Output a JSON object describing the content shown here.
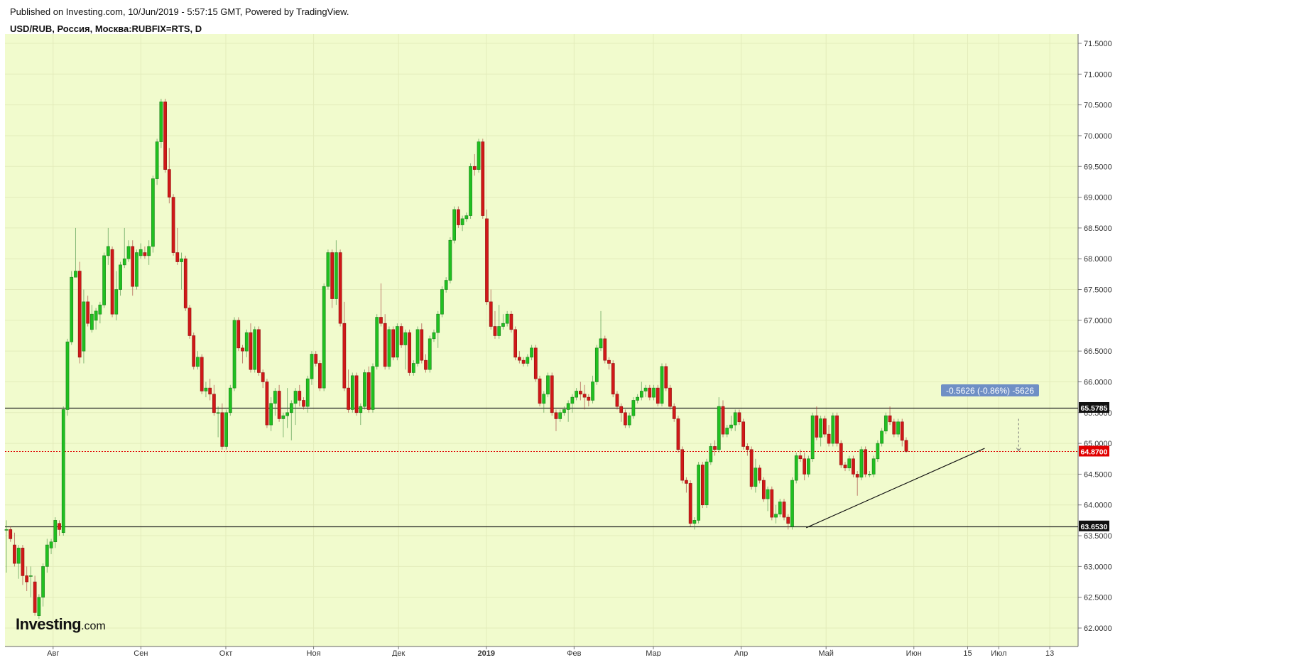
{
  "header": {
    "published": "Published on Investing.com, 10/Jun/2019 - 5:57:15 GMT, Powered by TradingView.",
    "symbol": "USD/RUB, Россия, Москва:RUBFIX=RTS, D"
  },
  "logo": {
    "main": "Investing",
    "suffix": ".com"
  },
  "colors": {
    "plot_bg": "#f1fbcd",
    "up": "#20c020",
    "down": "#d01818",
    "grid": "#e3ecbb",
    "level_line": "#222222",
    "current_line": "#e00000",
    "measure_label_bg": "#6f8fc5"
  },
  "chart_data": {
    "type": "candlestick",
    "title": "USD/RUB, Россия, Москва:RUBFIX=RTS, D",
    "ylim": [
      61.7,
      71.65
    ],
    "y_ticks": [
      "62.0000",
      "62.5000",
      "63.0000",
      "63.5000",
      "64.0000",
      "64.5000",
      "65.0000",
      "65.5000",
      "66.0000",
      "66.5000",
      "67.0000",
      "67.5000",
      "68.0000",
      "68.5000",
      "69.0000",
      "69.5000",
      "70.0000",
      "70.5000",
      "71.0000",
      "71.5000"
    ],
    "x_labels": [
      {
        "label": "Авг",
        "day": 22
      },
      {
        "label": "Сен",
        "day": 53
      },
      {
        "label": "Окт",
        "day": 83
      },
      {
        "label": "Ноя",
        "day": 114
      },
      {
        "label": "Дек",
        "day": 144
      },
      {
        "label": "2019",
        "day": 175,
        "bold": true
      },
      {
        "label": "Фев",
        "day": 206
      },
      {
        "label": "Мар",
        "day": 234
      },
      {
        "label": "Апр",
        "day": 265
      },
      {
        "label": "Май",
        "day": 295
      },
      {
        "label": "Июн",
        "day": 326
      },
      {
        "label": "15",
        "day": 345
      },
      {
        "label": "Июл",
        "day": 356
      },
      {
        "label": "13",
        "day": 374
      }
    ],
    "x_range_days": [
      5,
      384
    ],
    "horizontal_levels": [
      {
        "value": 65.5785,
        "label": "65.5785"
      },
      {
        "value": 63.653,
        "label": "63.6530"
      }
    ],
    "current_price": {
      "value": 64.87,
      "label": "64.8700"
    },
    "trendline": {
      "from": {
        "day": 288,
        "value": 63.63
      },
      "to": {
        "day": 351,
        "value": 64.92
      }
    },
    "measure": {
      "day": 363,
      "from": 65.4,
      "to": 64.88,
      "label": "-0.5626 (-0.86%) -5626"
    },
    "series": [
      [
        63.6,
        63.75,
        62.9,
        63.6
      ],
      [
        63.6,
        63.65,
        63.4,
        63.45
      ],
      [
        63.35,
        63.55,
        63.0,
        63.05
      ],
      [
        63.05,
        63.35,
        62.8,
        63.3
      ],
      [
        63.3,
        63.35,
        62.7,
        62.85
      ],
      [
        62.85,
        63.0,
        62.6,
        62.75
      ],
      [
        62.85,
        63.0,
        62.5,
        62.85
      ],
      [
        62.75,
        62.85,
        62.2,
        62.25
      ],
      [
        62.2,
        62.55,
        62.15,
        62.5
      ],
      [
        62.5,
        63.05,
        62.35,
        63.0
      ],
      [
        63.0,
        63.45,
        62.9,
        63.35
      ],
      [
        63.3,
        63.45,
        63.2,
        63.4
      ],
      [
        63.4,
        63.8,
        63.3,
        63.75
      ],
      [
        63.7,
        63.75,
        63.5,
        63.6
      ],
      [
        63.55,
        65.6,
        63.5,
        65.55
      ],
      [
        65.55,
        66.7,
        65.45,
        66.65
      ],
      [
        66.65,
        67.8,
        66.6,
        67.7
      ],
      [
        67.7,
        68.5,
        67.75,
        67.8
      ],
      [
        67.8,
        67.95,
        66.3,
        66.4
      ],
      [
        66.5,
        67.5,
        66.3,
        67.3
      ],
      [
        67.3,
        67.4,
        66.9,
        66.95
      ],
      [
        66.85,
        67.25,
        66.8,
        67.1
      ],
      [
        67.0,
        67.2,
        66.85,
        67.15
      ],
      [
        67.1,
        67.3,
        66.95,
        67.25
      ],
      [
        67.25,
        68.1,
        67.2,
        68.05
      ],
      [
        68.05,
        68.5,
        67.9,
        68.2
      ],
      [
        68.15,
        68.2,
        67.05,
        67.1
      ],
      [
        67.1,
        67.8,
        67.0,
        67.5
      ],
      [
        67.5,
        67.95,
        67.4,
        67.9
      ],
      [
        67.9,
        68.5,
        67.85,
        68.0
      ],
      [
        68.0,
        68.3,
        67.95,
        68.2
      ],
      [
        68.2,
        68.3,
        67.4,
        67.55
      ],
      [
        67.55,
        68.15,
        67.5,
        68.1
      ],
      [
        68.05,
        68.25,
        68.0,
        68.15
      ],
      [
        68.1,
        68.2,
        68.0,
        68.05
      ],
      [
        68.05,
        68.3,
        67.9,
        68.2
      ],
      [
        68.2,
        69.35,
        68.1,
        69.3
      ],
      [
        69.3,
        69.95,
        69.2,
        69.9
      ],
      [
        69.9,
        70.6,
        69.8,
        70.55
      ],
      [
        70.55,
        70.6,
        69.4,
        69.45
      ],
      [
        69.45,
        69.8,
        68.9,
        69.0
      ],
      [
        69.0,
        69.05,
        68.05,
        68.1
      ],
      [
        68.1,
        68.5,
        67.9,
        67.95
      ],
      [
        67.95,
        68.1,
        67.5,
        68.0
      ],
      [
        68.0,
        68.05,
        67.15,
        67.2
      ],
      [
        67.2,
        67.25,
        66.7,
        66.75
      ],
      [
        66.75,
        66.8,
        66.2,
        66.25
      ],
      [
        66.25,
        66.5,
        66.2,
        66.4
      ],
      [
        66.4,
        66.45,
        65.8,
        65.85
      ],
      [
        65.85,
        66.0,
        65.75,
        65.9
      ],
      [
        65.9,
        66.05,
        65.7,
        65.8
      ],
      [
        65.8,
        65.95,
        65.45,
        65.5
      ],
      [
        65.5,
        65.6,
        65.1,
        65.5
      ],
      [
        65.5,
        65.65,
        64.9,
        64.95
      ],
      [
        64.95,
        65.55,
        64.9,
        65.5
      ],
      [
        65.5,
        65.95,
        65.45,
        65.9
      ],
      [
        65.9,
        67.05,
        65.85,
        67.0
      ],
      [
        67.0,
        67.05,
        66.5,
        66.55
      ],
      [
        66.55,
        66.6,
        66.3,
        66.5
      ],
      [
        66.5,
        66.85,
        66.4,
        66.8
      ],
      [
        66.8,
        66.95,
        66.15,
        66.2
      ],
      [
        66.2,
        66.9,
        66.15,
        66.85
      ],
      [
        66.85,
        66.9,
        66.1,
        66.15
      ],
      [
        66.15,
        66.2,
        65.9,
        66.0
      ],
      [
        66.0,
        66.05,
        65.25,
        65.3
      ],
      [
        65.3,
        65.75,
        65.2,
        65.65
      ],
      [
        65.65,
        65.9,
        65.45,
        65.85
      ],
      [
        65.85,
        65.95,
        65.35,
        65.4
      ],
      [
        65.4,
        65.5,
        65.1,
        65.45
      ],
      [
        65.45,
        65.9,
        65.25,
        65.5
      ],
      [
        65.5,
        65.7,
        65.05,
        65.65
      ],
      [
        65.65,
        65.9,
        65.3,
        65.85
      ],
      [
        65.85,
        65.95,
        65.6,
        65.7
      ],
      [
        65.7,
        65.75,
        65.55,
        65.6
      ],
      [
        65.6,
        66.1,
        65.5,
        66.05
      ],
      [
        66.05,
        66.5,
        65.95,
        66.45
      ],
      [
        66.45,
        66.5,
        66.25,
        66.3
      ],
      [
        66.3,
        66.35,
        65.85,
        65.9
      ],
      [
        65.9,
        67.6,
        65.85,
        67.55
      ],
      [
        67.55,
        68.15,
        67.5,
        68.1
      ],
      [
        68.1,
        68.15,
        67.2,
        67.35
      ],
      [
        67.35,
        68.3,
        67.25,
        68.1
      ],
      [
        68.1,
        68.15,
        66.9,
        66.95
      ],
      [
        66.95,
        67.3,
        65.85,
        65.9
      ],
      [
        65.9,
        66.2,
        65.5,
        65.55
      ],
      [
        65.55,
        66.15,
        65.5,
        66.1
      ],
      [
        66.1,
        66.15,
        65.45,
        65.5
      ],
      [
        65.5,
        65.65,
        65.3,
        65.6
      ],
      [
        65.6,
        66.2,
        65.55,
        66.15
      ],
      [
        66.15,
        66.25,
        65.5,
        65.55
      ],
      [
        65.55,
        66.3,
        65.5,
        66.25
      ],
      [
        66.25,
        67.1,
        66.2,
        67.05
      ],
      [
        67.05,
        67.6,
        66.9,
        66.95
      ],
      [
        66.95,
        67.1,
        66.2,
        66.25
      ],
      [
        66.25,
        66.9,
        66.2,
        66.85
      ],
      [
        66.85,
        66.9,
        66.35,
        66.4
      ],
      [
        66.4,
        66.95,
        66.35,
        66.9
      ],
      [
        66.9,
        66.95,
        66.55,
        66.6
      ],
      [
        66.6,
        66.85,
        66.2,
        66.8
      ],
      [
        66.8,
        66.85,
        66.1,
        66.15
      ],
      [
        66.15,
        66.35,
        66.1,
        66.3
      ],
      [
        66.3,
        66.9,
        66.25,
        66.85
      ],
      [
        66.85,
        66.95,
        66.3,
        66.35
      ],
      [
        66.35,
        66.45,
        66.15,
        66.2
      ],
      [
        66.2,
        66.75,
        66.15,
        66.7
      ],
      [
        66.7,
        66.85,
        66.65,
        66.8
      ],
      [
        66.8,
        67.15,
        66.55,
        67.1
      ],
      [
        67.1,
        67.55,
        67.05,
        67.5
      ],
      [
        67.5,
        67.7,
        67.45,
        67.65
      ],
      [
        67.65,
        68.35,
        67.6,
        68.3
      ],
      [
        68.3,
        68.85,
        68.25,
        68.8
      ],
      [
        68.8,
        68.85,
        68.5,
        68.55
      ],
      [
        68.55,
        68.7,
        68.45,
        68.65
      ],
      [
        68.65,
        68.75,
        68.6,
        68.7
      ],
      [
        68.7,
        69.55,
        68.65,
        69.5
      ],
      [
        69.5,
        69.7,
        69.35,
        69.45
      ],
      [
        69.45,
        69.95,
        69.4,
        69.9
      ],
      [
        69.9,
        69.95,
        68.65,
        68.7
      ],
      [
        68.65,
        68.8,
        67.25,
        67.3
      ],
      [
        67.3,
        67.5,
        66.85,
        66.9
      ],
      [
        66.9,
        67.15,
        66.7,
        66.75
      ],
      [
        66.75,
        67.25,
        66.7,
        66.9
      ],
      [
        66.9,
        67.1,
        66.85,
        66.95
      ],
      [
        66.95,
        67.15,
        66.9,
        67.1
      ],
      [
        67.1,
        67.15,
        66.8,
        66.85
      ],
      [
        66.85,
        66.9,
        66.35,
        66.4
      ],
      [
        66.4,
        66.5,
        66.3,
        66.35
      ],
      [
        66.35,
        66.4,
        66.25,
        66.3
      ],
      [
        66.3,
        66.45,
        66.25,
        66.4
      ],
      [
        66.4,
        66.6,
        66.35,
        66.55
      ],
      [
        66.55,
        66.6,
        66.0,
        66.05
      ],
      [
        66.05,
        66.1,
        65.6,
        65.65
      ],
      [
        65.65,
        65.85,
        65.5,
        65.8
      ],
      [
        65.8,
        66.15,
        65.75,
        66.1
      ],
      [
        66.1,
        66.15,
        65.45,
        65.5
      ],
      [
        65.5,
        65.55,
        65.2,
        65.4
      ],
      [
        65.4,
        65.55,
        65.35,
        65.5
      ],
      [
        65.5,
        65.6,
        65.45,
        65.55
      ],
      [
        65.55,
        65.7,
        65.35,
        65.65
      ],
      [
        65.65,
        65.8,
        65.5,
        65.75
      ],
      [
        65.75,
        65.9,
        65.7,
        65.85
      ],
      [
        65.85,
        66.0,
        65.7,
        65.8
      ],
      [
        65.8,
        65.95,
        65.55,
        65.75
      ],
      [
        65.75,
        65.8,
        65.6,
        65.7
      ],
      [
        65.7,
        66.1,
        65.65,
        66.0
      ],
      [
        66.0,
        66.6,
        65.95,
        66.55
      ],
      [
        66.55,
        67.15,
        66.5,
        66.7
      ],
      [
        66.7,
        66.75,
        66.3,
        66.35
      ],
      [
        66.35,
        66.4,
        66.2,
        66.3
      ],
      [
        66.3,
        66.35,
        65.75,
        65.8
      ],
      [
        65.8,
        65.85,
        65.55,
        65.6
      ],
      [
        65.6,
        65.65,
        65.35,
        65.5
      ],
      [
        65.5,
        65.55,
        65.25,
        65.3
      ],
      [
        65.3,
        65.5,
        65.25,
        65.45
      ],
      [
        65.45,
        65.75,
        65.4,
        65.7
      ],
      [
        65.7,
        65.8,
        65.65,
        65.75
      ],
      [
        65.75,
        66.0,
        65.7,
        65.85
      ],
      [
        65.85,
        65.95,
        65.75,
        65.9
      ],
      [
        65.9,
        65.95,
        65.7,
        65.75
      ],
      [
        65.75,
        65.95,
        65.7,
        65.9
      ],
      [
        65.9,
        65.95,
        65.6,
        65.65
      ],
      [
        65.65,
        66.3,
        65.6,
        66.25
      ],
      [
        66.25,
        66.3,
        65.85,
        65.9
      ],
      [
        65.9,
        65.95,
        65.55,
        65.6
      ],
      [
        65.6,
        65.65,
        65.35,
        65.4
      ],
      [
        65.4,
        65.45,
        64.85,
        64.9
      ],
      [
        64.9,
        64.95,
        64.35,
        64.4
      ],
      [
        64.4,
        64.45,
        64.2,
        64.35
      ],
      [
        64.35,
        64.4,
        63.65,
        63.7
      ],
      [
        63.7,
        63.8,
        63.6,
        63.75
      ],
      [
        63.75,
        64.7,
        63.7,
        64.65
      ],
      [
        64.65,
        64.7,
        63.95,
        64.0
      ],
      [
        64.0,
        64.75,
        63.95,
        64.7
      ],
      [
        64.7,
        65.0,
        64.65,
        64.95
      ],
      [
        64.95,
        65.05,
        64.8,
        64.9
      ],
      [
        64.9,
        65.75,
        64.85,
        65.6
      ],
      [
        65.6,
        65.7,
        65.1,
        65.15
      ],
      [
        65.15,
        65.3,
        65.1,
        65.25
      ],
      [
        65.25,
        65.45,
        65.2,
        65.3
      ],
      [
        65.3,
        65.55,
        65.2,
        65.5
      ],
      [
        65.5,
        65.55,
        65.3,
        65.35
      ],
      [
        65.35,
        65.4,
        64.9,
        64.95
      ],
      [
        64.95,
        65.0,
        64.8,
        64.9
      ],
      [
        64.9,
        64.95,
        64.25,
        64.3
      ],
      [
        64.3,
        64.75,
        64.2,
        64.6
      ],
      [
        64.6,
        64.65,
        64.35,
        64.4
      ],
      [
        64.4,
        64.45,
        64.05,
        64.1
      ],
      [
        64.1,
        64.3,
        63.9,
        64.25
      ],
      [
        64.25,
        64.3,
        63.75,
        63.8
      ],
      [
        63.8,
        64.0,
        63.7,
        63.85
      ],
      [
        63.85,
        64.1,
        63.8,
        64.05
      ],
      [
        64.05,
        64.1,
        63.75,
        63.8
      ],
      [
        63.8,
        63.85,
        63.6,
        63.7
      ],
      [
        63.65,
        64.45,
        63.6,
        64.4
      ],
      [
        64.4,
        64.85,
        64.35,
        64.8
      ],
      [
        64.8,
        64.9,
        64.7,
        64.75
      ],
      [
        64.75,
        64.85,
        64.4,
        64.5
      ],
      [
        64.5,
        64.8,
        64.45,
        64.75
      ],
      [
        64.75,
        65.5,
        64.7,
        65.45
      ],
      [
        65.45,
        65.6,
        65.05,
        65.1
      ],
      [
        65.1,
        65.45,
        64.95,
        65.4
      ],
      [
        65.4,
        65.45,
        65.1,
        65.15
      ],
      [
        65.15,
        65.3,
        64.95,
        65.0
      ],
      [
        65.0,
        65.5,
        64.95,
        65.45
      ],
      [
        65.45,
        65.5,
        64.95,
        65.0
      ],
      [
        65.0,
        65.05,
        64.6,
        64.65
      ],
      [
        64.65,
        64.7,
        64.55,
        64.6
      ],
      [
        64.6,
        64.8,
        64.55,
        64.75
      ],
      [
        64.75,
        64.8,
        64.45,
        64.5
      ],
      [
        64.5,
        64.55,
        64.15,
        64.45
      ],
      [
        64.45,
        64.95,
        64.4,
        64.9
      ],
      [
        64.9,
        64.95,
        64.45,
        64.5
      ],
      [
        64.5,
        64.55,
        64.45,
        64.5
      ],
      [
        64.5,
        64.8,
        64.45,
        64.75
      ],
      [
        64.75,
        65.05,
        64.7,
        65.0
      ],
      [
        65.0,
        65.25,
        64.95,
        65.2
      ],
      [
        65.2,
        65.5,
        65.15,
        65.45
      ],
      [
        65.45,
        65.6,
        65.3,
        65.35
      ],
      [
        65.35,
        65.4,
        65.1,
        65.15
      ],
      [
        65.15,
        65.4,
        65.1,
        65.35
      ],
      [
        65.35,
        65.4,
        64.95,
        65.05
      ],
      [
        65.05,
        65.1,
        64.85,
        64.87
      ]
    ]
  }
}
